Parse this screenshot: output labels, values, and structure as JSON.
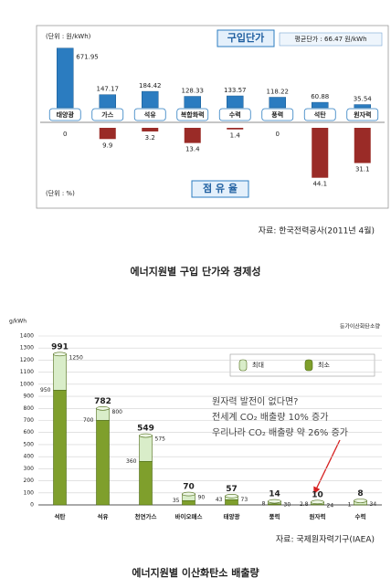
{
  "chart_data": [
    {
      "type": "updown_bar",
      "categories": [
        "태양광",
        "가스",
        "석유",
        "복합화력",
        "수력",
        "풍력",
        "석탄",
        "원자력"
      ],
      "series": [
        {
          "name": "구입단가",
          "color": "#2b7cc0",
          "unit": "(단위 : 원/kWh)",
          "values": [
            671.95,
            147.17,
            184.42,
            128.33,
            133.57,
            118.22,
            60.88,
            35.54
          ],
          "ylim": [
            0,
            700
          ]
        },
        {
          "name": "점 유 율",
          "color": "#9a2b27",
          "unit": "(단위 : %)",
          "values": [
            0.0,
            9.9,
            3.2,
            13.4,
            1.4,
            0.0,
            44.1,
            31.1
          ],
          "ylim": [
            0,
            50
          ]
        }
      ],
      "annotation": "평균단가 : 66.47 원/kWh",
      "source": "자료: 한국전력공사(2011년 4월)",
      "caption": "에너지원별 구입 단가와 경제성"
    },
    {
      "type": "range_cylinder",
      "y_label": "g/kWh",
      "subtitle": "등가이산화탄소량",
      "categories": [
        "석탄",
        "석유",
        "천연가스",
        "바이오매스",
        "태양광",
        "풍력",
        "원자력",
        "수력"
      ],
      "series": [
        {
          "name": "최대",
          "color": "#d9edc9",
          "values": [
            1250,
            800,
            575,
            90,
            73,
            30,
            24,
            34
          ]
        },
        {
          "name": "최소",
          "color": "#7f9f2c",
          "values": [
            950,
            700,
            360,
            35,
            43,
            8,
            2.8,
            1
          ]
        }
      ],
      "top_values": [
        991,
        782,
        549,
        70,
        57,
        14,
        10,
        8
      ],
      "ylim": [
        0,
        1400
      ],
      "yticks": [
        0,
        100,
        200,
        300,
        400,
        500,
        600,
        700,
        800,
        900,
        1000,
        1100,
        1200,
        1300,
        1400
      ],
      "grid": true,
      "annotation": [
        "원자력 발전이 없다면?",
        "전세계 CO₂ 배출량 10% 증가",
        "우리나라 CO₂ 배출량 약 26% 증가"
      ],
      "source": "자료:  국제원자력기구(IAEA)",
      "caption": "에너지원별 이산화탄소 배출량"
    }
  ]
}
